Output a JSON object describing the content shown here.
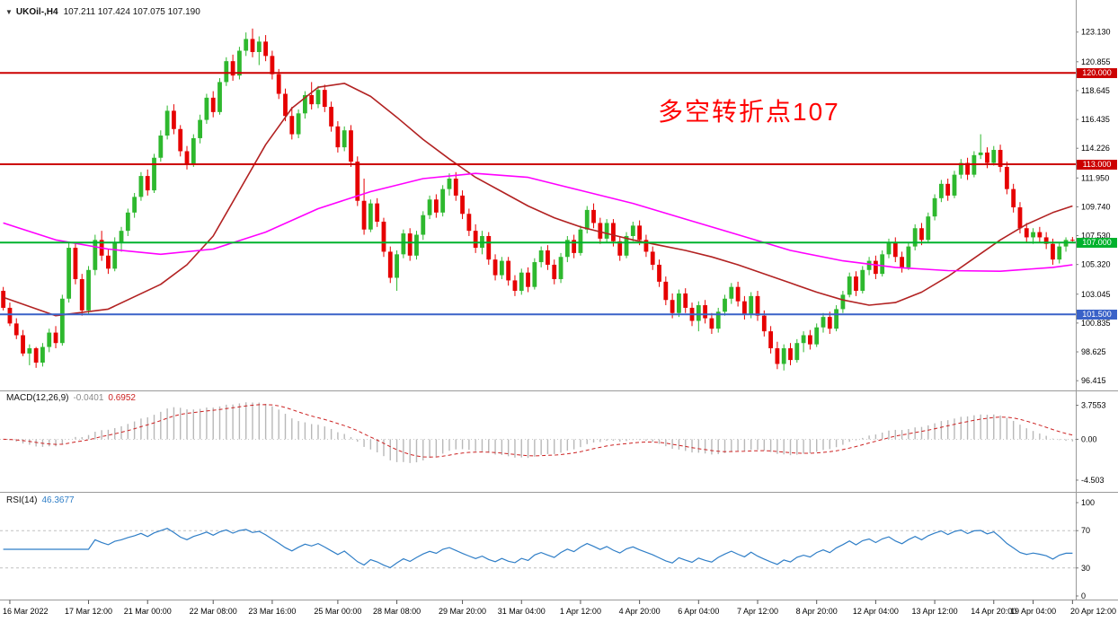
{
  "window": {
    "title_symbol": "UKOil-,H4",
    "title_ohlc": "107.211 107.424 107.075 107.190",
    "annotation": "多空转折点107",
    "collapse_icon": "▼"
  },
  "colors": {
    "up_candle": "#2eb82e",
    "down_candle": "#e60000",
    "ma_fast": "#b22222",
    "ma_slow": "#ff00ff",
    "resistance_line": "#cc0000",
    "pivot_line": "#00b22d",
    "support_line": "#3a62c8",
    "macd_hist": "#b8b8b8",
    "macd_signal": "#cc2222",
    "rsi_line": "#2f7ec7",
    "annotation": "#ff0000",
    "separator": "#9a9a9a"
  },
  "chart_data": {
    "type": "candlestick",
    "title": "UKOil-,H4",
    "timeframe": "H4",
    "last_ohlc": {
      "open": 107.211,
      "high": 107.424,
      "low": 107.075,
      "close": 107.19
    },
    "ylim": [
      95.6,
      124.9
    ],
    "price_axis_labels": [
      "123.130",
      "120.855",
      "118.645",
      "116.435",
      "114.226",
      "111.950",
      "109.740",
      "107.530",
      "105.320",
      "103.045",
      "100.835",
      "98.625",
      "96.415"
    ],
    "hlines": [
      {
        "value": 120.0,
        "label": "120.000",
        "color": "#cc0000"
      },
      {
        "value": 113.0,
        "label": "113.000",
        "color": "#cc0000"
      },
      {
        "value": 107.0,
        "label": "107.000",
        "color": "#00b22d"
      },
      {
        "value": 101.5,
        "label": "101.500",
        "color": "#3a62c8"
      }
    ],
    "time_axis": [
      {
        "i": 1,
        "label": "16 Mar 2022"
      },
      {
        "i": 13,
        "label": "17 Mar 12:00"
      },
      {
        "i": 22,
        "label": "21 Mar 00:00"
      },
      {
        "i": 32,
        "label": "22 Mar 08:00"
      },
      {
        "i": 41,
        "label": "23 Mar 16:00"
      },
      {
        "i": 51,
        "label": "25 Mar 00:00"
      },
      {
        "i": 60,
        "label": "28 Mar 08:00"
      },
      {
        "i": 70,
        "label": "29 Mar 20:00"
      },
      {
        "i": 79,
        "label": "31 Mar 04:00"
      },
      {
        "i": 88,
        "label": "1 Apr 12:00"
      },
      {
        "i": 97,
        "label": "4 Apr 20:00"
      },
      {
        "i": 106,
        "label": "6 Apr 04:00"
      },
      {
        "i": 115,
        "label": "7 Apr 12:00"
      },
      {
        "i": 124,
        "label": "8 Apr 20:00"
      },
      {
        "i": 133,
        "label": "12 Apr 04:00"
      },
      {
        "i": 142,
        "label": "13 Apr 12:00"
      },
      {
        "i": 151,
        "label": "14 Apr 20:00"
      },
      {
        "i": 157,
        "label": "19 Apr 04:00"
      },
      {
        "i": 163,
        "label": "20 Apr 12:00"
      }
    ],
    "candles": [
      [
        103.3,
        103.6,
        101.8,
        102.0
      ],
      [
        102.0,
        102.4,
        100.6,
        100.8
      ],
      [
        100.8,
        101.2,
        99.6,
        99.9
      ],
      [
        99.9,
        100.3,
        98.3,
        98.5
      ],
      [
        98.5,
        99.2,
        97.6,
        98.9
      ],
      [
        98.9,
        99.0,
        97.4,
        97.8
      ],
      [
        97.8,
        99.3,
        97.5,
        99.0
      ],
      [
        99.0,
        100.4,
        98.6,
        100.1
      ],
      [
        100.1,
        100.6,
        98.9,
        99.3
      ],
      [
        99.3,
        103.0,
        99.1,
        102.7
      ],
      [
        102.7,
        107.0,
        102.4,
        106.6
      ],
      [
        106.6,
        106.9,
        103.8,
        104.2
      ],
      [
        104.2,
        104.6,
        101.4,
        101.8
      ],
      [
        101.8,
        105.2,
        101.5,
        104.9
      ],
      [
        104.9,
        107.6,
        104.5,
        107.2
      ],
      [
        107.2,
        107.9,
        105.6,
        106.0
      ],
      [
        106.0,
        106.5,
        104.6,
        105.0
      ],
      [
        105.0,
        107.4,
        104.8,
        107.0
      ],
      [
        107.0,
        108.2,
        106.3,
        107.9
      ],
      [
        107.9,
        109.6,
        107.5,
        109.3
      ],
      [
        109.3,
        110.8,
        108.9,
        110.5
      ],
      [
        110.5,
        112.4,
        110.2,
        112.1
      ],
      [
        112.1,
        112.6,
        110.6,
        111.0
      ],
      [
        111.0,
        113.8,
        110.8,
        113.5
      ],
      [
        113.5,
        115.6,
        113.2,
        115.2
      ],
      [
        115.2,
        117.5,
        114.9,
        117.1
      ],
      [
        117.1,
        117.6,
        115.3,
        115.7
      ],
      [
        115.7,
        116.0,
        113.6,
        114.0
      ],
      [
        114.0,
        114.4,
        112.6,
        113.0
      ],
      [
        113.0,
        115.3,
        112.8,
        115.0
      ],
      [
        115.0,
        116.8,
        114.6,
        116.4
      ],
      [
        116.4,
        118.4,
        116.1,
        118.1
      ],
      [
        118.1,
        118.6,
        116.6,
        117.0
      ],
      [
        117.0,
        119.6,
        116.8,
        119.3
      ],
      [
        119.3,
        121.2,
        119.0,
        120.9
      ],
      [
        120.9,
        121.4,
        119.4,
        119.8
      ],
      [
        119.8,
        122.0,
        119.5,
        121.7
      ],
      [
        121.7,
        123.1,
        121.3,
        122.6
      ],
      [
        122.6,
        123.4,
        121.2,
        121.6
      ],
      [
        121.6,
        122.8,
        120.6,
        122.4
      ],
      [
        122.4,
        122.9,
        120.9,
        121.3
      ],
      [
        121.3,
        121.7,
        119.5,
        119.9
      ],
      [
        119.9,
        120.3,
        118.0,
        118.4
      ],
      [
        118.4,
        118.8,
        116.3,
        116.7
      ],
      [
        116.7,
        117.4,
        114.9,
        115.3
      ],
      [
        115.3,
        117.2,
        115.0,
        116.9
      ],
      [
        116.9,
        118.6,
        116.5,
        118.3
      ],
      [
        118.3,
        119.3,
        117.2,
        117.6
      ],
      [
        117.6,
        119.0,
        117.3,
        118.7
      ],
      [
        118.7,
        119.1,
        117.0,
        117.4
      ],
      [
        117.4,
        117.8,
        115.5,
        115.9
      ],
      [
        115.9,
        116.3,
        113.9,
        114.3
      ],
      [
        114.3,
        115.9,
        114.0,
        115.6
      ],
      [
        115.6,
        116.0,
        112.8,
        113.2
      ],
      [
        113.2,
        113.6,
        109.8,
        110.2
      ],
      [
        110.2,
        111.9,
        107.6,
        108.0
      ],
      [
        108.0,
        110.3,
        107.8,
        110.0
      ],
      [
        110.0,
        110.4,
        108.2,
        108.6
      ],
      [
        108.6,
        108.9,
        105.9,
        106.3
      ],
      [
        106.3,
        106.7,
        103.9,
        104.3
      ],
      [
        104.3,
        106.4,
        103.3,
        106.1
      ],
      [
        106.1,
        108.0,
        105.8,
        107.7
      ],
      [
        107.7,
        108.1,
        105.6,
        106.0
      ],
      [
        106.0,
        107.9,
        105.7,
        107.6
      ],
      [
        107.6,
        109.4,
        107.2,
        109.1
      ],
      [
        109.1,
        110.6,
        108.8,
        110.3
      ],
      [
        110.3,
        110.7,
        108.9,
        109.3
      ],
      [
        109.3,
        111.4,
        109.0,
        111.1
      ],
      [
        111.1,
        112.3,
        110.6,
        111.9
      ],
      [
        111.9,
        112.4,
        110.2,
        110.6
      ],
      [
        110.6,
        111.0,
        108.8,
        109.2
      ],
      [
        109.2,
        109.6,
        107.5,
        107.9
      ],
      [
        107.9,
        108.4,
        106.2,
        106.6
      ],
      [
        106.6,
        107.9,
        106.1,
        107.5
      ],
      [
        107.5,
        107.8,
        105.3,
        105.7
      ],
      [
        105.7,
        106.1,
        104.1,
        104.5
      ],
      [
        104.5,
        105.9,
        104.2,
        105.6
      ],
      [
        105.6,
        105.9,
        103.7,
        104.1
      ],
      [
        104.1,
        104.5,
        102.9,
        103.3
      ],
      [
        103.3,
        105.0,
        103.0,
        104.7
      ],
      [
        104.7,
        105.1,
        103.2,
        103.6
      ],
      [
        103.6,
        105.8,
        103.4,
        105.5
      ],
      [
        105.5,
        106.7,
        105.1,
        106.4
      ],
      [
        106.4,
        106.8,
        104.9,
        105.3
      ],
      [
        105.3,
        105.7,
        103.8,
        104.2
      ],
      [
        104.2,
        106.2,
        103.9,
        105.9
      ],
      [
        105.9,
        107.5,
        105.5,
        107.2
      ],
      [
        107.2,
        107.6,
        105.8,
        106.2
      ],
      [
        106.2,
        108.3,
        106.0,
        108.0
      ],
      [
        108.0,
        109.8,
        107.7,
        109.5
      ],
      [
        109.5,
        110.0,
        108.1,
        108.5
      ],
      [
        108.5,
        108.9,
        106.9,
        107.3
      ],
      [
        107.3,
        108.8,
        107.0,
        108.5
      ],
      [
        108.5,
        108.8,
        106.7,
        107.1
      ],
      [
        107.1,
        107.5,
        105.6,
        106.0
      ],
      [
        106.0,
        107.8,
        105.8,
        107.5
      ],
      [
        107.5,
        108.6,
        107.1,
        108.3
      ],
      [
        108.3,
        108.7,
        106.8,
        107.2
      ],
      [
        107.2,
        107.6,
        105.9,
        106.3
      ],
      [
        106.3,
        106.7,
        104.9,
        105.3
      ],
      [
        105.3,
        105.7,
        103.6,
        104.0
      ],
      [
        104.0,
        104.4,
        102.2,
        102.6
      ],
      [
        102.6,
        103.1,
        101.2,
        101.6
      ],
      [
        101.6,
        103.4,
        101.3,
        103.1
      ],
      [
        103.1,
        103.5,
        101.6,
        102.0
      ],
      [
        102.0,
        102.4,
        100.6,
        101.0
      ],
      [
        101.0,
        102.5,
        100.2,
        102.2
      ],
      [
        102.2,
        102.6,
        100.8,
        101.2
      ],
      [
        101.2,
        101.6,
        100.0,
        100.4
      ],
      [
        100.4,
        102.0,
        100.1,
        101.7
      ],
      [
        101.7,
        103.0,
        101.4,
        102.7
      ],
      [
        102.7,
        103.9,
        102.3,
        103.6
      ],
      [
        103.6,
        104.0,
        102.1,
        102.5
      ],
      [
        102.5,
        102.9,
        101.1,
        101.5
      ],
      [
        101.5,
        103.2,
        101.2,
        102.9
      ],
      [
        102.9,
        103.3,
        101.0,
        101.4
      ],
      [
        101.4,
        101.8,
        99.8,
        100.2
      ],
      [
        100.2,
        100.6,
        98.5,
        98.9
      ],
      [
        98.9,
        99.4,
        97.3,
        97.7
      ],
      [
        97.7,
        99.2,
        97.2,
        98.9
      ],
      [
        98.9,
        99.3,
        97.6,
        98.0
      ],
      [
        98.0,
        99.6,
        97.8,
        99.3
      ],
      [
        99.3,
        100.2,
        98.6,
        99.9
      ],
      [
        99.9,
        100.3,
        98.8,
        99.2
      ],
      [
        99.2,
        100.8,
        99.0,
        100.5
      ],
      [
        100.5,
        101.6,
        100.1,
        101.3
      ],
      [
        101.3,
        101.7,
        100.0,
        100.4
      ],
      [
        100.4,
        102.2,
        100.2,
        101.9
      ],
      [
        101.9,
        103.3,
        101.6,
        103.0
      ],
      [
        103.0,
        104.7,
        102.8,
        104.4
      ],
      [
        104.4,
        104.8,
        102.9,
        103.3
      ],
      [
        103.3,
        105.2,
        103.1,
        104.9
      ],
      [
        104.9,
        105.9,
        104.5,
        105.6
      ],
      [
        105.6,
        106.0,
        104.2,
        104.6
      ],
      [
        104.6,
        106.4,
        104.4,
        106.1
      ],
      [
        106.1,
        107.3,
        105.8,
        107.0
      ],
      [
        107.0,
        107.4,
        105.5,
        105.9
      ],
      [
        105.9,
        106.3,
        104.7,
        105.1
      ],
      [
        105.1,
        107.0,
        104.9,
        106.7
      ],
      [
        106.7,
        108.4,
        106.4,
        108.1
      ],
      [
        108.1,
        108.5,
        106.8,
        107.2
      ],
      [
        107.2,
        109.3,
        107.0,
        109.0
      ],
      [
        109.0,
        110.7,
        108.7,
        110.4
      ],
      [
        110.4,
        111.8,
        110.1,
        111.5
      ],
      [
        111.5,
        111.9,
        110.2,
        110.6
      ],
      [
        110.6,
        112.5,
        110.4,
        112.2
      ],
      [
        112.2,
        113.4,
        111.9,
        113.1
      ],
      [
        113.1,
        113.5,
        111.8,
        112.2
      ],
      [
        112.2,
        114.0,
        112.0,
        113.7
      ],
      [
        113.7,
        115.3,
        113.4,
        113.9
      ],
      [
        113.9,
        114.3,
        112.7,
        113.1
      ],
      [
        113.1,
        114.4,
        112.9,
        114.1
      ],
      [
        114.1,
        114.5,
        112.4,
        112.8
      ],
      [
        112.8,
        113.2,
        110.7,
        111.1
      ],
      [
        111.1,
        111.5,
        109.3,
        109.7
      ],
      [
        109.7,
        110.1,
        107.7,
        108.1
      ],
      [
        108.1,
        108.5,
        107.0,
        107.4
      ],
      [
        107.4,
        108.1,
        106.9,
        107.8
      ],
      [
        107.8,
        108.2,
        107.0,
        107.4
      ],
      [
        107.4,
        107.8,
        106.5,
        106.9
      ],
      [
        106.9,
        107.3,
        105.3,
        105.7
      ],
      [
        105.7,
        107.0,
        105.4,
        106.7
      ],
      [
        106.7,
        107.4,
        106.3,
        107.2
      ],
      [
        107.211,
        107.424,
        107.075,
        107.19
      ]
    ],
    "ma_fast": {
      "name": "MA-fast",
      "color": "#b22222",
      "points": [
        [
          0,
          102.8
        ],
        [
          8,
          101.4
        ],
        [
          16,
          101.9
        ],
        [
          24,
          103.8
        ],
        [
          28,
          105.3
        ],
        [
          32,
          107.5
        ],
        [
          36,
          111.0
        ],
        [
          40,
          114.5
        ],
        [
          44,
          117.3
        ],
        [
          48,
          118.9
        ],
        [
          52,
          119.2
        ],
        [
          56,
          118.2
        ],
        [
          60,
          116.6
        ],
        [
          64,
          114.9
        ],
        [
          68,
          113.4
        ],
        [
          72,
          112.0
        ],
        [
          76,
          110.9
        ],
        [
          80,
          109.8
        ],
        [
          84,
          108.9
        ],
        [
          88,
          108.2
        ],
        [
          92,
          107.7
        ],
        [
          96,
          107.2
        ],
        [
          100,
          106.8
        ],
        [
          104,
          106.4
        ],
        [
          108,
          105.9
        ],
        [
          112,
          105.3
        ],
        [
          116,
          104.6
        ],
        [
          120,
          103.9
        ],
        [
          124,
          103.2
        ],
        [
          128,
          102.6
        ],
        [
          132,
          102.2
        ],
        [
          136,
          102.4
        ],
        [
          140,
          103.2
        ],
        [
          144,
          104.4
        ],
        [
          148,
          105.8
        ],
        [
          152,
          107.2
        ],
        [
          156,
          108.4
        ],
        [
          160,
          109.3
        ],
        [
          163,
          109.8
        ]
      ]
    },
    "ma_slow": {
      "name": "MA-slow",
      "color": "#ff00ff",
      "points": [
        [
          0,
          108.5
        ],
        [
          8,
          107.2
        ],
        [
          16,
          106.5
        ],
        [
          24,
          106.1
        ],
        [
          32,
          106.5
        ],
        [
          40,
          107.8
        ],
        [
          48,
          109.6
        ],
        [
          56,
          110.9
        ],
        [
          64,
          111.9
        ],
        [
          72,
          112.3
        ],
        [
          80,
          112.0
        ],
        [
          88,
          111.0
        ],
        [
          96,
          110.0
        ],
        [
          104,
          108.8
        ],
        [
          112,
          107.6
        ],
        [
          120,
          106.4
        ],
        [
          128,
          105.6
        ],
        [
          136,
          105.1
        ],
        [
          144,
          104.85
        ],
        [
          152,
          104.8
        ],
        [
          160,
          105.1
        ],
        [
          163,
          105.3
        ]
      ]
    },
    "macd": {
      "name": "MACD(12,26,9)",
      "value_main": "-0.0401",
      "value_signal": "0.6952",
      "params": [
        12,
        26,
        9
      ],
      "ylim": [
        -5.3,
        4.3
      ],
      "axis_labels": [
        "3.7553",
        "0.00",
        "-4.503"
      ]
    },
    "rsi": {
      "name": "RSI(14)",
      "value": "46.3677",
      "period": 14,
      "levels": [
        70,
        30
      ],
      "ylim": [
        0,
        100
      ],
      "axis_labels": [
        "100",
        "70",
        "30",
        "0"
      ]
    }
  }
}
